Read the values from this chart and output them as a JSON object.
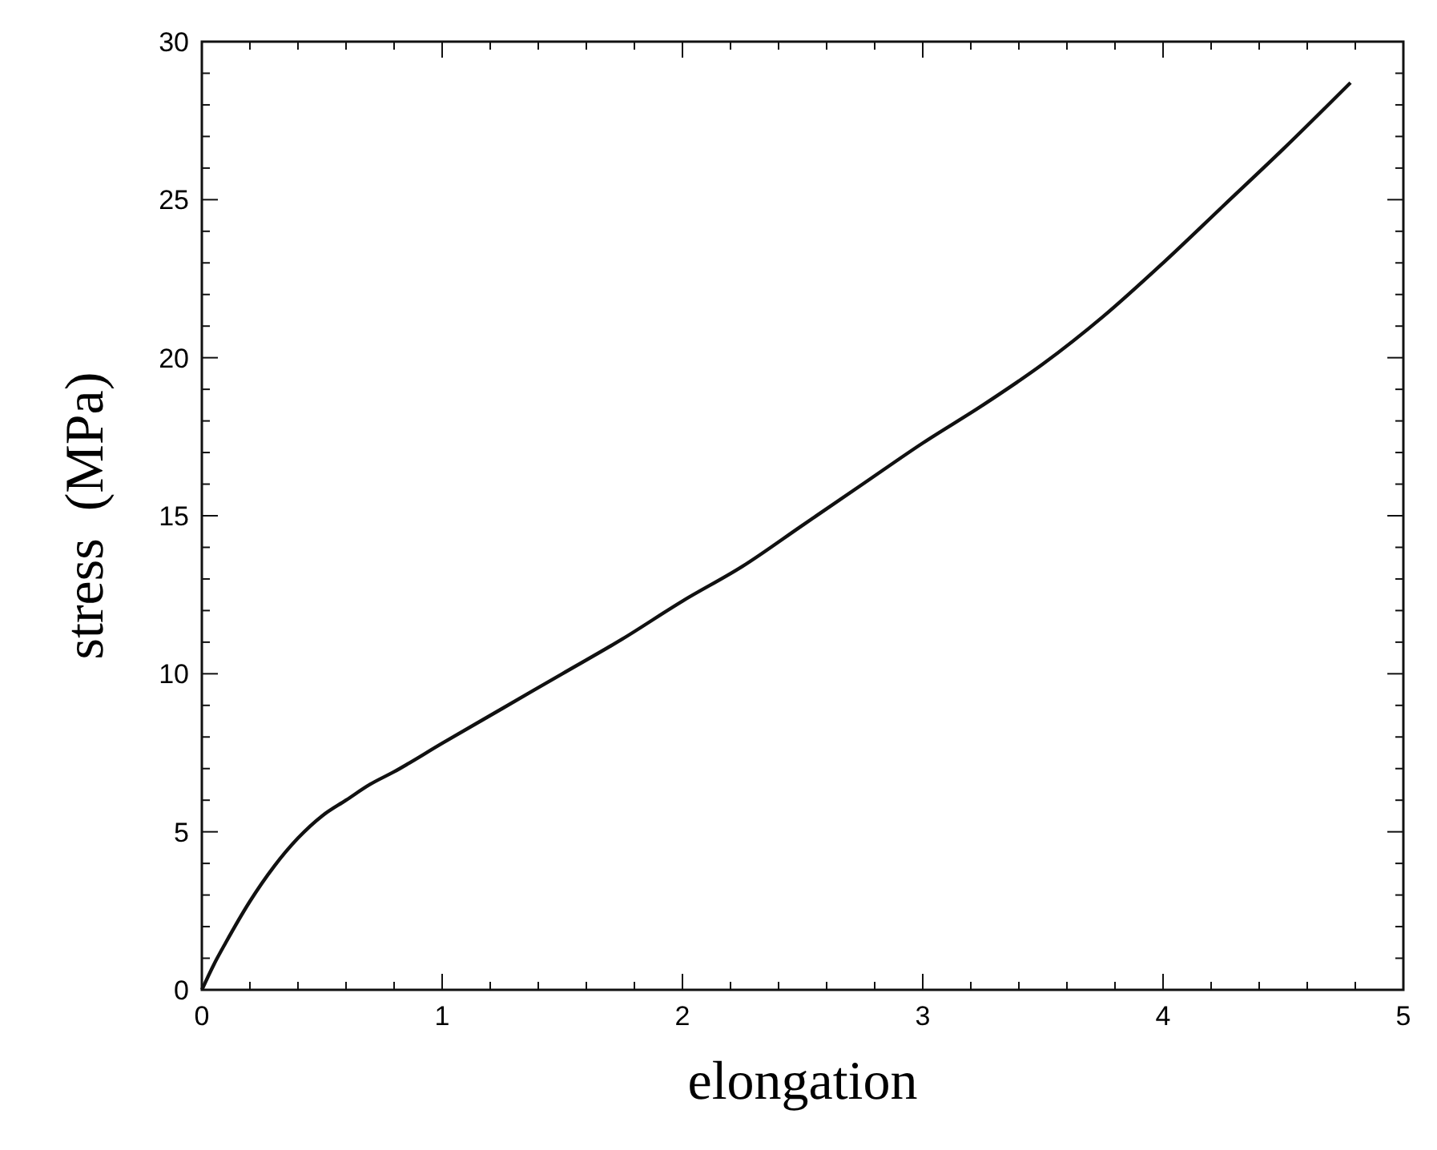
{
  "chart_data": {
    "type": "line",
    "xlabel": "elongation",
    "ylabel": "stress  (MPa)",
    "series": [
      {
        "color": "#111111",
        "x": [
          0,
          0.05,
          0.1,
          0.2,
          0.3,
          0.4,
          0.5,
          0.6,
          0.7,
          0.8,
          1.0,
          1.25,
          1.5,
          1.75,
          2.0,
          2.25,
          2.5,
          2.75,
          3.0,
          3.25,
          3.5,
          3.75,
          4.0,
          4.25,
          4.5,
          4.78
        ],
        "values": [
          0,
          0.8,
          1.5,
          2.8,
          3.9,
          4.8,
          5.5,
          6.0,
          6.5,
          6.9,
          7.8,
          8.9,
          10.0,
          11.1,
          12.3,
          13.4,
          14.7,
          16.0,
          17.3,
          18.5,
          19.8,
          21.3,
          23.0,
          24.8,
          26.6,
          28.7
        ]
      }
    ],
    "xlim": [
      0,
      5
    ],
    "ylim": [
      0,
      30
    ],
    "xticks": [
      0,
      1,
      2,
      3,
      4,
      5,
      {
        "value": 0.2,
        "label": null
      },
      {
        "value": 0.4,
        "label": null
      },
      {
        "value": 0.6,
        "label": null
      },
      {
        "value": 0.8,
        "label": null
      },
      {
        "value": 1.2,
        "label": null
      },
      {
        "value": 1.4,
        "label": null
      },
      {
        "value": 1.6,
        "label": null
      },
      {
        "value": 1.8,
        "label": null
      },
      {
        "value": 2.2,
        "label": null
      },
      {
        "value": 2.4,
        "label": null
      },
      {
        "value": 2.6,
        "label": null
      },
      {
        "value": 2.8,
        "label": null
      },
      {
        "value": 3.2,
        "label": null
      },
      {
        "value": 3.4,
        "label": null
      },
      {
        "value": 3.6,
        "label": null
      },
      {
        "value": 3.8,
        "label": null
      },
      {
        "value": 4.2,
        "label": null
      },
      {
        "value": 4.4,
        "label": null
      },
      {
        "value": 4.6,
        "label": null
      },
      {
        "value": 4.8,
        "label": null
      }
    ],
    "yticks": [
      0,
      5,
      10,
      15,
      20,
      25,
      30,
      {
        "value": 1,
        "label": null
      },
      {
        "value": 2,
        "label": null
      },
      {
        "value": 3,
        "label": null
      },
      {
        "value": 4,
        "label": null
      },
      {
        "value": 6,
        "label": null
      },
      {
        "value": 7,
        "label": null
      },
      {
        "value": 8,
        "label": null
      },
      {
        "value": 9,
        "label": null
      },
      {
        "value": 11,
        "label": null
      },
      {
        "value": 12,
        "label": null
      },
      {
        "value": 13,
        "label": null
      },
      {
        "value": 14,
        "label": null
      },
      {
        "value": 16,
        "label": null
      },
      {
        "value": 17,
        "label": null
      },
      {
        "value": 18,
        "label": null
      },
      {
        "value": 19,
        "label": null
      },
      {
        "value": 21,
        "label": null
      },
      {
        "value": 22,
        "label": null
      },
      {
        "value": 23,
        "label": null
      },
      {
        "value": 24,
        "label": null
      },
      {
        "value": 26,
        "label": null
      },
      {
        "value": 27,
        "label": null
      },
      {
        "value": 28,
        "label": null
      },
      {
        "value": 29,
        "label": null
      }
    ],
    "grid": false,
    "marker": "none",
    "line_style": "solid"
  }
}
